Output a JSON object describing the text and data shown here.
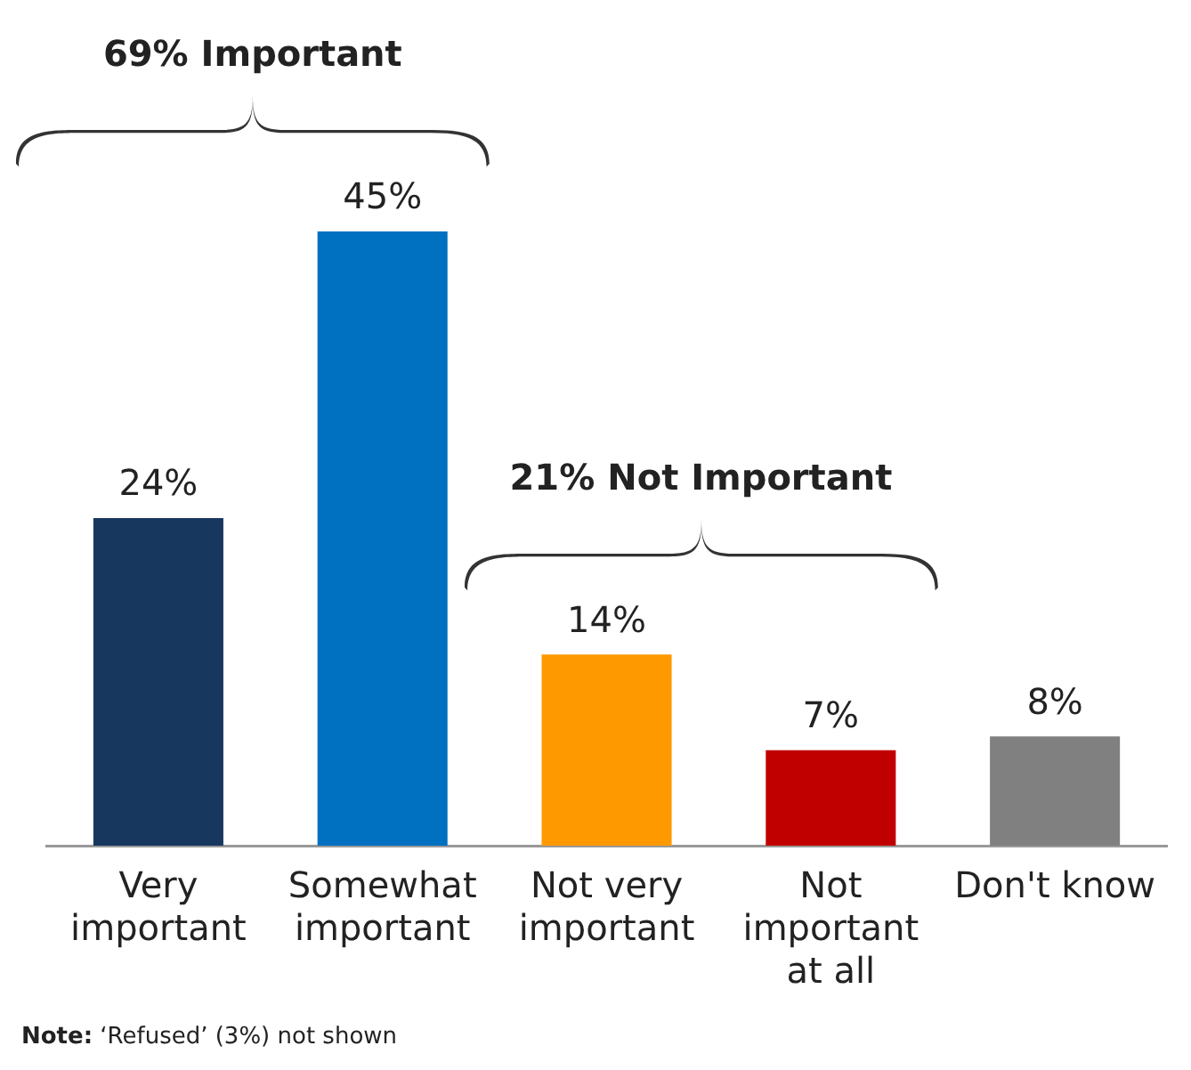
{
  "chart_data": {
    "type": "bar",
    "categories": [
      "Very important",
      "Somewhat important",
      "Not very important",
      "Not important at all",
      "Don't know"
    ],
    "values": [
      24,
      45,
      14,
      7,
      8
    ],
    "colors": [
      "#17375e",
      "#0070c0",
      "#ff9900",
      "#c00000",
      "#808080"
    ],
    "data_labels": true,
    "value_labels": [
      "24%",
      "45%",
      "14%",
      "7%",
      "8%"
    ],
    "grid": false,
    "legend": false,
    "tick_labels": "x",
    "annotations": [
      "69% Important",
      "21% Not Important",
      "Note: ‘Refused’ (3%) not shown"
    ]
  }
}
